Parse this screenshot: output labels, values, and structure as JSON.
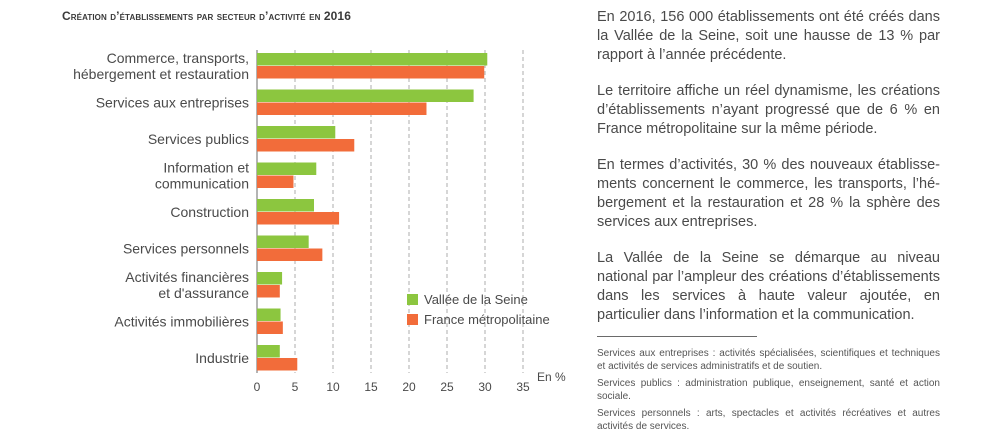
{
  "title": "Création d’établissements par secteur d’activité en 2016",
  "colors": {
    "vallee": "#8cc63f",
    "france": "#f26c3a",
    "grid": "#9a9a9a"
  },
  "chart_data": {
    "type": "bar",
    "orientation": "horizontal",
    "categories": [
      [
        "Commerce, transports,",
        "hébergement et restauration"
      ],
      [
        "Services aux entreprises"
      ],
      [
        "Services publics"
      ],
      [
        "Information et",
        "communication"
      ],
      [
        "Construction"
      ],
      [
        "Services personnels"
      ],
      [
        "Activités financières",
        "et d'assurance"
      ],
      [
        "Activités immobilières"
      ],
      [
        "Industrie"
      ]
    ],
    "series": [
      {
        "name": "Vallée de la Seine",
        "color": "#8cc63f",
        "values": [
          30.3,
          28.5,
          10.3,
          7.8,
          7.5,
          6.8,
          3.3,
          3.1,
          3.0
        ]
      },
      {
        "name": "France métropolitaine",
        "color": "#f26c3a",
        "values": [
          29.9,
          22.3,
          12.8,
          4.8,
          10.8,
          8.6,
          3.0,
          3.4,
          5.3
        ]
      }
    ],
    "xlim": [
      0,
      35
    ],
    "xticks": [
      "0",
      "5",
      "10",
      "15",
      "20",
      "25",
      "30",
      "35"
    ],
    "unit": "En %",
    "grid": "vertical dashed",
    "legend_placement": "bottom-right"
  },
  "text_panel": {
    "paragraphs": [
      "En 2016, 156 000 établissements ont été créés dans la Vallée de la Seine, soit une hausse de 13 % par rapport à l’année précédente.",
      "Le territoire affiche un réel dynamisme, les créations d’établissements n’ayant progressé que de 6 % en France métropolitaine sur la même période.",
      "En termes d’activités, 30 % des nouveaux établisse­ments concernent le commerce, les transports, l’hé­bergement et la restauration et 28 % la sphère des services aux entreprises.",
      "La Vallée de la Seine se démarque au niveau national par l’ampleur des créations d’établissements dans les services à haute valeur ajoutée, en particulier dans l’information et la communication."
    ]
  },
  "footnotes": [
    "Services aux entreprises : activités spécialisées, scientifiques et tech­niques et activités de services administratifs et de soutien.",
    "Services publics : administration publique, enseignement, santé et action sociale.",
    "Services personnels : arts, spectacles et activités récréatives et autres activités de services."
  ]
}
